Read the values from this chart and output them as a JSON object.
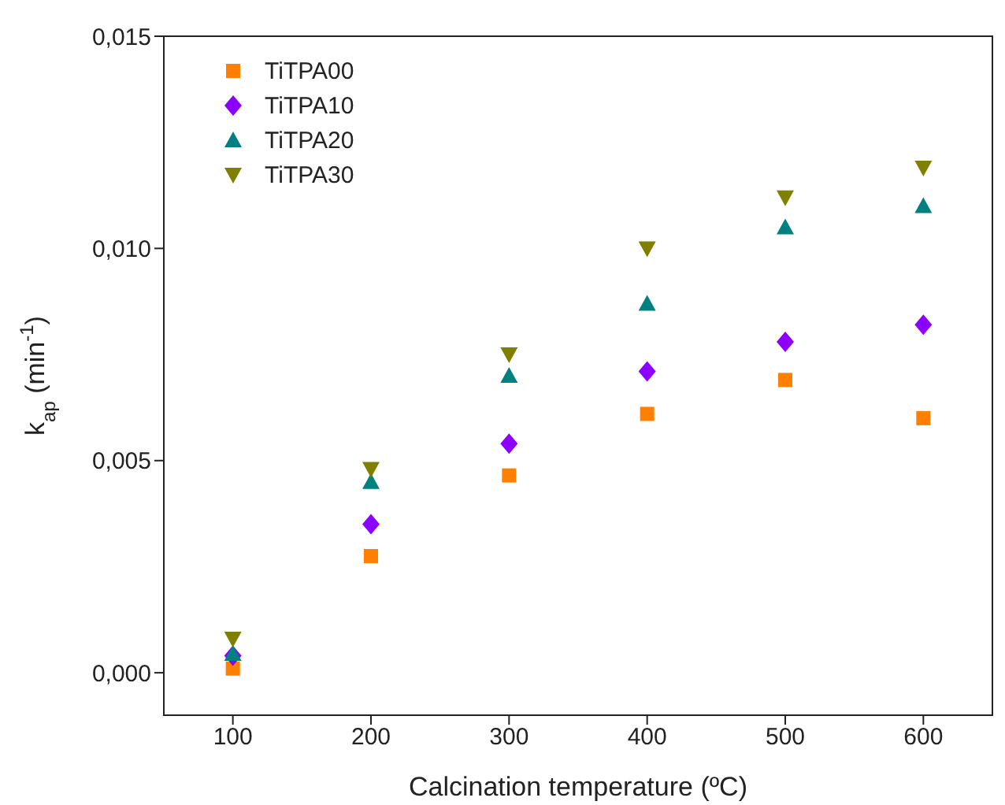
{
  "chart_data": {
    "type": "scatter",
    "xlabel": "Calcination temperature (ºC)",
    "ylabel": "k$_{ap}$ (min$^{-1}$)",
    "x": [
      100,
      200,
      300,
      400,
      500,
      600
    ],
    "series": [
      {
        "name": "TiTPA00",
        "color": "#ff7f00",
        "marker": "square",
        "values": [
          0.0001,
          0.00275,
          0.00465,
          0.0061,
          0.0069,
          0.006
        ]
      },
      {
        "name": "TiTPA10",
        "color": "#8b00ff",
        "marker": "diamond",
        "values": [
          0.0004,
          0.0035,
          0.0054,
          0.0071,
          0.0078,
          0.0082
        ]
      },
      {
        "name": "TiTPA20",
        "color": "#008080",
        "marker": "triangle",
        "values": [
          0.00045,
          0.0045,
          0.007,
          0.0087,
          0.0105,
          0.011
        ]
      },
      {
        "name": "TiTPA30",
        "color": "#808000",
        "marker": "triangle-down",
        "values": [
          0.0008,
          0.0048,
          0.0075,
          0.01,
          0.0112,
          0.0119
        ]
      }
    ],
    "xlim": [
      50,
      650
    ],
    "xticks": [
      100,
      200,
      300,
      400,
      500,
      600
    ],
    "ylim": [
      -0.001,
      0.015
    ],
    "yticks": [
      {
        "value": 0,
        "label": "0,000"
      },
      {
        "value": 0.005,
        "label": "0,005"
      },
      {
        "value": 0.01,
        "label": "0,010"
      },
      {
        "value": 0.015,
        "label": "0,015"
      }
    ],
    "legend": "top left"
  }
}
